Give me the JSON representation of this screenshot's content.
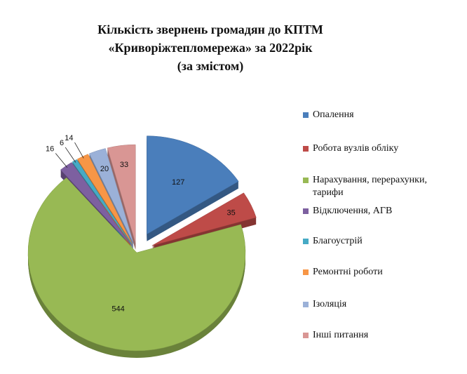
{
  "chart_data": {
    "type": "pie",
    "title": [
      "Кількість звернень громадян до КПТМ",
      "«Криворіжтепломережа» за 2022рік",
      "(за змістом)"
    ],
    "categories": [
      "Опалення",
      "Робота вузлів  обліку",
      "Нарахування, перерахунки, тарифи",
      "Відключення,  АГВ",
      "Благоустрій",
      "Ремонтні роботи",
      "Ізоляція",
      "Інші  питання"
    ],
    "values": [
      127,
      35,
      544,
      16,
      6,
      14,
      20,
      33
    ],
    "colors": [
      "#4a7ebb",
      "#be4b48",
      "#98b954",
      "#7d60a0",
      "#46aac5",
      "#f79646",
      "#9bb1d8",
      "#d99694"
    ]
  }
}
